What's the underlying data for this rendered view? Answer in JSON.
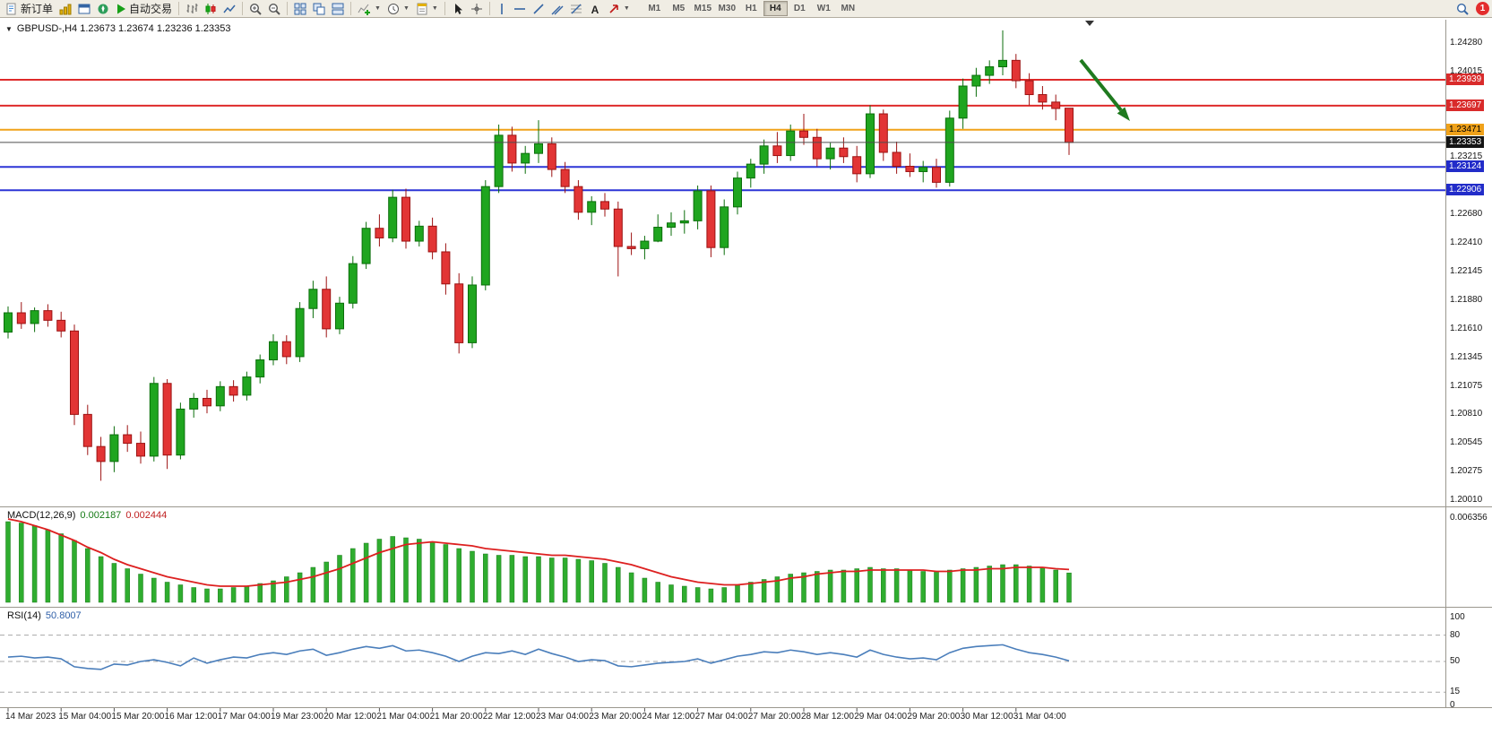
{
  "toolbar": {
    "new_order_label": "新订单",
    "autotrading_label": "自动交易",
    "timeframes": [
      "M1",
      "M5",
      "M15",
      "M30",
      "H1",
      "H4",
      "D1",
      "W1",
      "MN"
    ],
    "active_timeframe": "H4",
    "notification_count": "1",
    "icon_names": [
      "new-order-icon",
      "market-watch-icon",
      "data-window-icon",
      "navigator-icon",
      "autotrading-play-icon",
      "bars-chart-icon",
      "candlestick-chart-icon",
      "line-chart-icon",
      "zoom-in-icon",
      "zoom-out-icon",
      "tile-windows-icon",
      "cascade-windows-icon",
      "arrange-windows-icon",
      "indicators-icon",
      "periods-clock-icon",
      "templates-icon",
      "cursor-icon",
      "crosshair-icon",
      "vertical-line-icon",
      "horizontal-line-icon",
      "trendline-icon",
      "channel-icon",
      "fibonacci-icon",
      "text-tool-icon",
      "arrows-tool-icon",
      "search-icon"
    ]
  },
  "chart_data": [
    {
      "type": "candlestick",
      "title_text": "GBPUSD-,H4  1.23673 1.23674 1.23236 1.23353",
      "symbol_period": "GBPUSD-,H4",
      "open": "1.23673",
      "high": "1.23674",
      "low": "1.23236",
      "close": "1.23353",
      "ylim": [
        1.1995,
        1.245
      ],
      "y_ticks": [
        "1.24280",
        "1.24015",
        "1.23215",
        "1.22680",
        "1.22410",
        "1.22145",
        "1.21880",
        "1.21610",
        "1.21345",
        "1.21075",
        "1.20810",
        "1.20545",
        "1.20275",
        "1.20010"
      ],
      "x_labels": [
        "14 Mar 2023",
        "15 Mar 04:00",
        "15 Mar 20:00",
        "16 Mar 12:00",
        "17 Mar 04:00",
        "19 Mar 23:00",
        "20 Mar 12:00",
        "21 Mar 04:00",
        "21 Mar 20:00",
        "22 Mar 12:00",
        "23 Mar 04:00",
        "23 Mar 20:00",
        "24 Mar 12:00",
        "27 Mar 04:00",
        "27 Mar 20:00",
        "28 Mar 12:00",
        "29 Mar 04:00",
        "29 Mar 20:00",
        "30 Mar 12:00",
        "31 Mar 04:00"
      ],
      "candles_per_x_label": 4,
      "up_color": "#1fa51f",
      "down_color": "#e23535",
      "hlines": [
        {
          "price": 1.23939,
          "label": "1.23939",
          "color": "#de2a2a",
          "badge_bg": "#d92b2b",
          "text_color": "#ffffff",
          "width": 2
        },
        {
          "price": 1.23697,
          "label": "1.23697",
          "color": "#de2a2a",
          "badge_bg": "#d92b2b",
          "text_color": "#ffffff",
          "width": 2
        },
        {
          "price": 1.23471,
          "label": "1.23471",
          "color": "#f0a21a",
          "badge_bg": "#f0a21a",
          "text_color": "#000000",
          "width": 2
        },
        {
          "price": 1.23353,
          "label": "1.23353",
          "color": "#4d4d4d",
          "badge_bg": "#141414",
          "text_color": "#ffffff",
          "width": 1,
          "role": "current"
        },
        {
          "price": 1.23124,
          "label": "1.23124",
          "color": "#2d35d6",
          "badge_bg": "#222cc9",
          "text_color": "#ffffff",
          "width": 2
        },
        {
          "price": 1.22906,
          "label": "1.22906",
          "color": "#2d35d6",
          "badge_bg": "#222cc9",
          "text_color": "#ffffff",
          "width": 2
        }
      ],
      "annotations": [
        {
          "type": "arrow",
          "direction": "down-right",
          "color": "#1f7a1f"
        }
      ],
      "ohlc": [
        [
          1.2158,
          1.2182,
          1.2152,
          1.2176
        ],
        [
          1.2176,
          1.2186,
          1.2161,
          1.2166
        ],
        [
          1.2166,
          1.2181,
          1.2158,
          1.2178
        ],
        [
          1.2178,
          1.2184,
          1.2163,
          1.2169
        ],
        [
          1.2169,
          1.2177,
          1.2153,
          1.2159
        ],
        [
          1.2159,
          1.2165,
          1.2071,
          1.2081
        ],
        [
          1.2081,
          1.209,
          1.2043,
          1.2051
        ],
        [
          1.2051,
          1.206,
          1.2019,
          1.2037
        ],
        [
          1.2037,
          1.207,
          1.2027,
          1.2062
        ],
        [
          1.2062,
          1.2071,
          1.2046,
          1.2054
        ],
        [
          1.2054,
          1.2065,
          1.2035,
          1.2042
        ],
        [
          1.2042,
          1.2116,
          1.2037,
          1.211
        ],
        [
          1.211,
          1.2114,
          1.203,
          1.2043
        ],
        [
          1.2043,
          1.2092,
          1.2039,
          1.2086
        ],
        [
          1.2086,
          1.2101,
          1.2078,
          1.2096
        ],
        [
          1.2096,
          1.2104,
          1.2082,
          1.2089
        ],
        [
          1.2089,
          1.2112,
          1.2084,
          1.2107
        ],
        [
          1.2107,
          1.2113,
          1.2093,
          1.2099
        ],
        [
          1.2099,
          1.2121,
          1.2094,
          1.2116
        ],
        [
          1.2116,
          1.2137,
          1.211,
          1.2132
        ],
        [
          1.2132,
          1.2156,
          1.2127,
          1.2149
        ],
        [
          1.2149,
          1.2155,
          1.2128,
          1.2135
        ],
        [
          1.2135,
          1.2186,
          1.213,
          1.218
        ],
        [
          1.218,
          1.2206,
          1.2171,
          1.2198
        ],
        [
          1.2198,
          1.221,
          1.2153,
          1.2161
        ],
        [
          1.2161,
          1.2191,
          1.2156,
          1.2185
        ],
        [
          1.2185,
          1.2229,
          1.218,
          1.2222
        ],
        [
          1.2222,
          1.2261,
          1.2217,
          1.2255
        ],
        [
          1.2255,
          1.2268,
          1.2238,
          1.2246
        ],
        [
          1.2246,
          1.2291,
          1.2242,
          1.2284
        ],
        [
          1.2284,
          1.2292,
          1.2236,
          1.2243
        ],
        [
          1.2243,
          1.2262,
          1.2238,
          1.2257
        ],
        [
          1.2257,
          1.2265,
          1.2226,
          1.2233
        ],
        [
          1.2233,
          1.2241,
          1.2193,
          1.2203
        ],
        [
          1.2203,
          1.2213,
          1.2138,
          1.2148
        ],
        [
          1.2148,
          1.221,
          1.2143,
          1.2202
        ],
        [
          1.2202,
          1.23,
          1.2197,
          1.2294
        ],
        [
          1.2294,
          1.2352,
          1.2288,
          1.2342
        ],
        [
          1.2342,
          1.235,
          1.2308,
          1.2316
        ],
        [
          1.2316,
          1.2332,
          1.2306,
          1.2325
        ],
        [
          1.2325,
          1.2356,
          1.2316,
          1.2334
        ],
        [
          1.2334,
          1.234,
          1.2303,
          1.231
        ],
        [
          1.231,
          1.2317,
          1.2288,
          1.2294
        ],
        [
          1.2294,
          1.23,
          1.2263,
          1.227
        ],
        [
          1.227,
          1.2285,
          1.2258,
          1.228
        ],
        [
          1.228,
          1.2288,
          1.2266,
          1.2273
        ],
        [
          1.2273,
          1.228,
          1.221,
          1.2238
        ],
        [
          1.2238,
          1.2251,
          1.223,
          1.2236
        ],
        [
          1.2236,
          1.2248,
          1.2226,
          1.2243
        ],
        [
          1.2243,
          1.2268,
          1.2242,
          1.2256
        ],
        [
          1.2256,
          1.227,
          1.2248,
          1.226
        ],
        [
          1.226,
          1.2272,
          1.225,
          1.2262
        ],
        [
          1.2262,
          1.2295,
          1.2254,
          1.229
        ],
        [
          1.229,
          1.2295,
          1.2228,
          1.2237
        ],
        [
          1.2237,
          1.2282,
          1.223,
          1.2275
        ],
        [
          1.2275,
          1.2308,
          1.2268,
          1.2302
        ],
        [
          1.2302,
          1.232,
          1.2293,
          1.2315
        ],
        [
          1.2315,
          1.2338,
          1.2306,
          1.2332
        ],
        [
          1.2332,
          1.2345,
          1.2316,
          1.2323
        ],
        [
          1.2323,
          1.2352,
          1.2318,
          1.2346
        ],
        [
          1.2346,
          1.2362,
          1.2333,
          1.234
        ],
        [
          1.234,
          1.2348,
          1.2313,
          1.232
        ],
        [
          1.232,
          1.2335,
          1.231,
          1.233
        ],
        [
          1.233,
          1.234,
          1.2316,
          1.2322
        ],
        [
          1.2322,
          1.2332,
          1.2298,
          1.2306
        ],
        [
          1.2306,
          1.237,
          1.2302,
          1.2362
        ],
        [
          1.2362,
          1.2366,
          1.2318,
          1.2326
        ],
        [
          1.2326,
          1.2336,
          1.2306,
          1.2313
        ],
        [
          1.2313,
          1.2325,
          1.2303,
          1.2308
        ],
        [
          1.2308,
          1.2318,
          1.2298,
          1.2312
        ],
        [
          1.2312,
          1.232,
          1.2293,
          1.2298
        ],
        [
          1.2298,
          1.2365,
          1.2294,
          1.2358
        ],
        [
          1.2358,
          1.2395,
          1.2348,
          1.2388
        ],
        [
          1.2388,
          1.2405,
          1.2378,
          1.2398
        ],
        [
          1.2398,
          1.2412,
          1.239,
          1.2406
        ],
        [
          1.2406,
          1.244,
          1.2398,
          1.2412
        ],
        [
          1.2412,
          1.2418,
          1.2386,
          1.2393
        ],
        [
          1.2393,
          1.24,
          1.237,
          1.238
        ],
        [
          1.238,
          1.2388,
          1.2366,
          1.2373
        ],
        [
          1.2373,
          1.238,
          1.2356,
          1.2367
        ],
        [
          1.23673,
          1.23674,
          1.23236,
          1.23353
        ]
      ]
    },
    {
      "type": "bar",
      "title": "MACD(12,26,9)",
      "current_main": "0.002187",
      "current_signal": "0.002444",
      "scale_top_label": "0.006356",
      "bar_color": "#2fad2f",
      "signal_color": "#dd2020",
      "values": [
        0.006,
        0.0059,
        0.0057,
        0.0054,
        0.0051,
        0.0046,
        0.004,
        0.0034,
        0.0029,
        0.0025,
        0.0021,
        0.0018,
        0.0015,
        0.0013,
        0.0011,
        0.001,
        0.001,
        0.0011,
        0.0012,
        0.0014,
        0.0016,
        0.0019,
        0.0022,
        0.0026,
        0.003,
        0.0035,
        0.004,
        0.0044,
        0.0047,
        0.0049,
        0.0048,
        0.0047,
        0.0045,
        0.0043,
        0.004,
        0.0038,
        0.0036,
        0.0035,
        0.0035,
        0.0034,
        0.0034,
        0.0033,
        0.0033,
        0.0032,
        0.0031,
        0.0029,
        0.0026,
        0.0022,
        0.0018,
        0.0015,
        0.0013,
        0.0012,
        0.0011,
        0.001,
        0.0011,
        0.0013,
        0.0015,
        0.0017,
        0.0019,
        0.0021,
        0.0022,
        0.0023,
        0.0024,
        0.0024,
        0.0025,
        0.0026,
        0.0025,
        0.0025,
        0.0024,
        0.0023,
        0.0023,
        0.0024,
        0.0025,
        0.0026,
        0.0027,
        0.0028,
        0.0028,
        0.0027,
        0.0026,
        0.0024,
        0.002187
      ],
      "signal": [
        0.0062,
        0.006,
        0.0057,
        0.0054,
        0.005,
        0.0046,
        0.0041,
        0.0037,
        0.0032,
        0.0028,
        0.0025,
        0.0022,
        0.0019,
        0.0017,
        0.0015,
        0.0013,
        0.0012,
        0.0012,
        0.0012,
        0.0013,
        0.0014,
        0.0015,
        0.0017,
        0.0019,
        0.0022,
        0.0025,
        0.0029,
        0.0033,
        0.0037,
        0.004,
        0.0043,
        0.0044,
        0.0045,
        0.0044,
        0.0043,
        0.0042,
        0.004,
        0.0039,
        0.0038,
        0.0037,
        0.0036,
        0.0035,
        0.0035,
        0.0034,
        0.0033,
        0.0032,
        0.003,
        0.0028,
        0.0025,
        0.0022,
        0.0019,
        0.0017,
        0.0015,
        0.0014,
        0.0013,
        0.0013,
        0.0014,
        0.0015,
        0.0016,
        0.0018,
        0.0019,
        0.0021,
        0.0022,
        0.0023,
        0.0023,
        0.0024,
        0.0024,
        0.0024,
        0.0024,
        0.0024,
        0.0023,
        0.0023,
        0.0024,
        0.0024,
        0.0025,
        0.0025,
        0.0026,
        0.0026,
        0.0026,
        0.0025,
        0.002444
      ]
    },
    {
      "type": "line",
      "title": "RSI(14)",
      "current_value": "50.8007",
      "line_color": "#4a7ebb",
      "scale_labels": [
        "100",
        "80",
        "50",
        "15",
        "0"
      ],
      "dashed_levels": [
        80,
        50,
        15
      ],
      "values": [
        55,
        56,
        54,
        55,
        53,
        44,
        42,
        41,
        47,
        46,
        50,
        52,
        49,
        45,
        54,
        48,
        52,
        55,
        54,
        58,
        60,
        58,
        62,
        64,
        57,
        60,
        64,
        67,
        65,
        68,
        62,
        63,
        60,
        56,
        50,
        56,
        60,
        59,
        62,
        58,
        64,
        59,
        55,
        50,
        52,
        51,
        45,
        44,
        46,
        48,
        49,
        50,
        53,
        48,
        52,
        56,
        58,
        61,
        60,
        63,
        61,
        58,
        60,
        58,
        55,
        63,
        58,
        55,
        53,
        54,
        52,
        60,
        65,
        67,
        68,
        69,
        64,
        60,
        58,
        55,
        50.8
      ]
    }
  ]
}
